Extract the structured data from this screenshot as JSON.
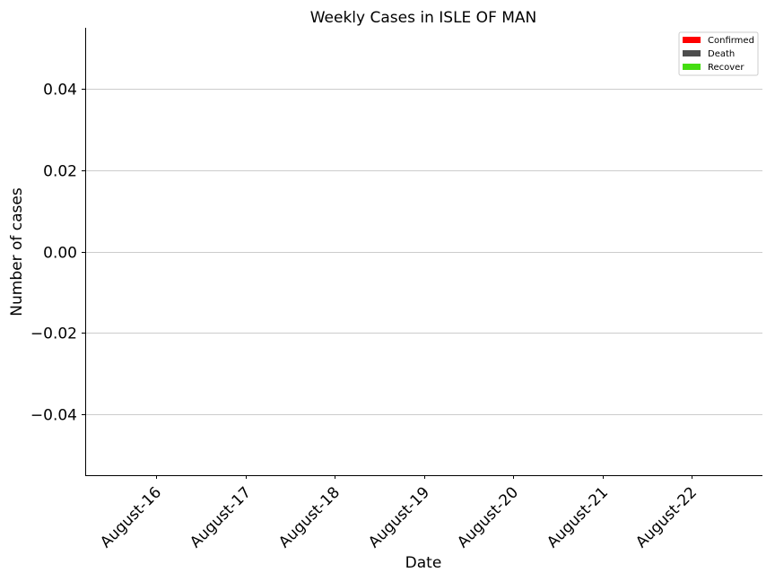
{
  "chart_data": {
    "type": "bar",
    "title": "Weekly Cases in ISLE OF MAN",
    "xlabel": "Date",
    "ylabel": "Number of cases",
    "categories": [
      "August-16",
      "August-17",
      "August-18",
      "August-19",
      "August-20",
      "August-21",
      "August-22"
    ],
    "series": [
      {
        "name": "Confirmed",
        "color": "#ff0000",
        "values": [
          0,
          0,
          0,
          0,
          0,
          0,
          0
        ]
      },
      {
        "name": "Death",
        "color": "#4d4d4d",
        "values": [
          0,
          0,
          0,
          0,
          0,
          0,
          0
        ]
      },
      {
        "name": "Recover",
        "color": "#44dd11",
        "values": [
          0,
          0,
          0,
          0,
          0,
          0,
          0
        ]
      }
    ],
    "ylim": [
      -0.055,
      0.055
    ],
    "yticks": [
      0.04,
      0.02,
      0.0,
      -0.02,
      -0.04
    ],
    "ytick_labels": [
      "0.04",
      "0.02",
      "0.00",
      "−0.02",
      "−0.04"
    ],
    "grid": "horizontal",
    "legend_position": "top-right"
  }
}
